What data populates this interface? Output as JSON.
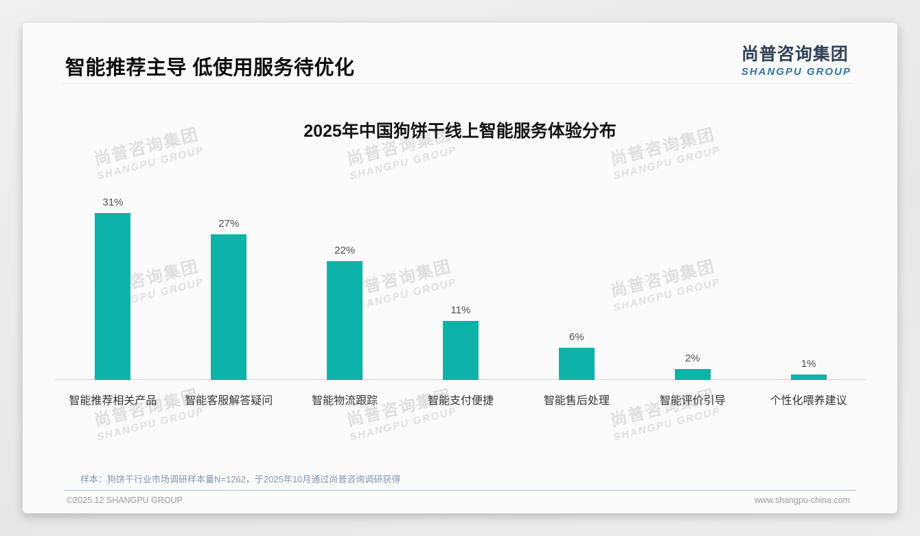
{
  "header": {
    "title": "智能推荐主导 低使用服务待优化",
    "logo": {
      "cn": "尚普咨询集团",
      "en": "SHANGPU GROUP"
    }
  },
  "watermark": {
    "cn": "尚普咨询集团",
    "en": "SHANGPU GROUP"
  },
  "chart_data": {
    "type": "bar",
    "title": "2025年中国狗饼干线上智能服务体验分布",
    "categories": [
      "智能推荐相关产品",
      "智能客服解答疑问",
      "智能物流跟踪",
      "智能支付便捷",
      "智能售后处理",
      "智能评价引导",
      "个性化喂养建议"
    ],
    "values": [
      31,
      27,
      22,
      11,
      6,
      2,
      1
    ],
    "data_labels": [
      "31%",
      "27%",
      "22%",
      "11%",
      "6%",
      "2%",
      "1%"
    ],
    "unit": "%",
    "bar_color": "#0db3a8",
    "xlabel": "",
    "ylabel": "",
    "ylim": [
      0,
      32
    ],
    "grid": false,
    "legend": false
  },
  "footnote": {
    "text": "样本：狗饼干行业市场调研样本量N=1262，于2025年10月通过尚普咨询调研获得"
  },
  "footer": {
    "left": "©2025.12 SHANGPU GROUP",
    "right": "www.shangpu-china.com"
  }
}
